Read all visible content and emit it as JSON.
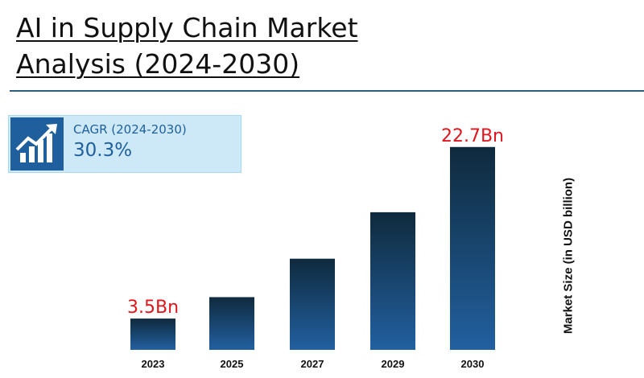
{
  "header": {
    "title": "AI in Supply Chain Market Analysis (2024-2030)"
  },
  "cagr": {
    "label": "CAGR (2024-2030)",
    "value": "30.3%",
    "icon": "growth-chart-icon"
  },
  "colors": {
    "bar_top": "#0f2a3d",
    "bar_bottom": "#2260a0",
    "value_label": "#e0161d",
    "accent": "#1f5f9e",
    "rule": "#2e5f80"
  },
  "chart_data": {
    "type": "bar",
    "categories": [
      "2023",
      "2025",
      "2027",
      "2029",
      "2030"
    ],
    "values": [
      3.5,
      5.9,
      10.2,
      15.4,
      22.7
    ],
    "data_labels": [
      {
        "category": "2023",
        "text": "3.5Bn"
      },
      {
        "category": "2030",
        "text": "22.7Bn"
      }
    ],
    "title": "",
    "xlabel": "",
    "ylabel": "Market Size (in USD billion)",
    "ylim": [
      0,
      27
    ],
    "grid": false,
    "legend": "none"
  }
}
